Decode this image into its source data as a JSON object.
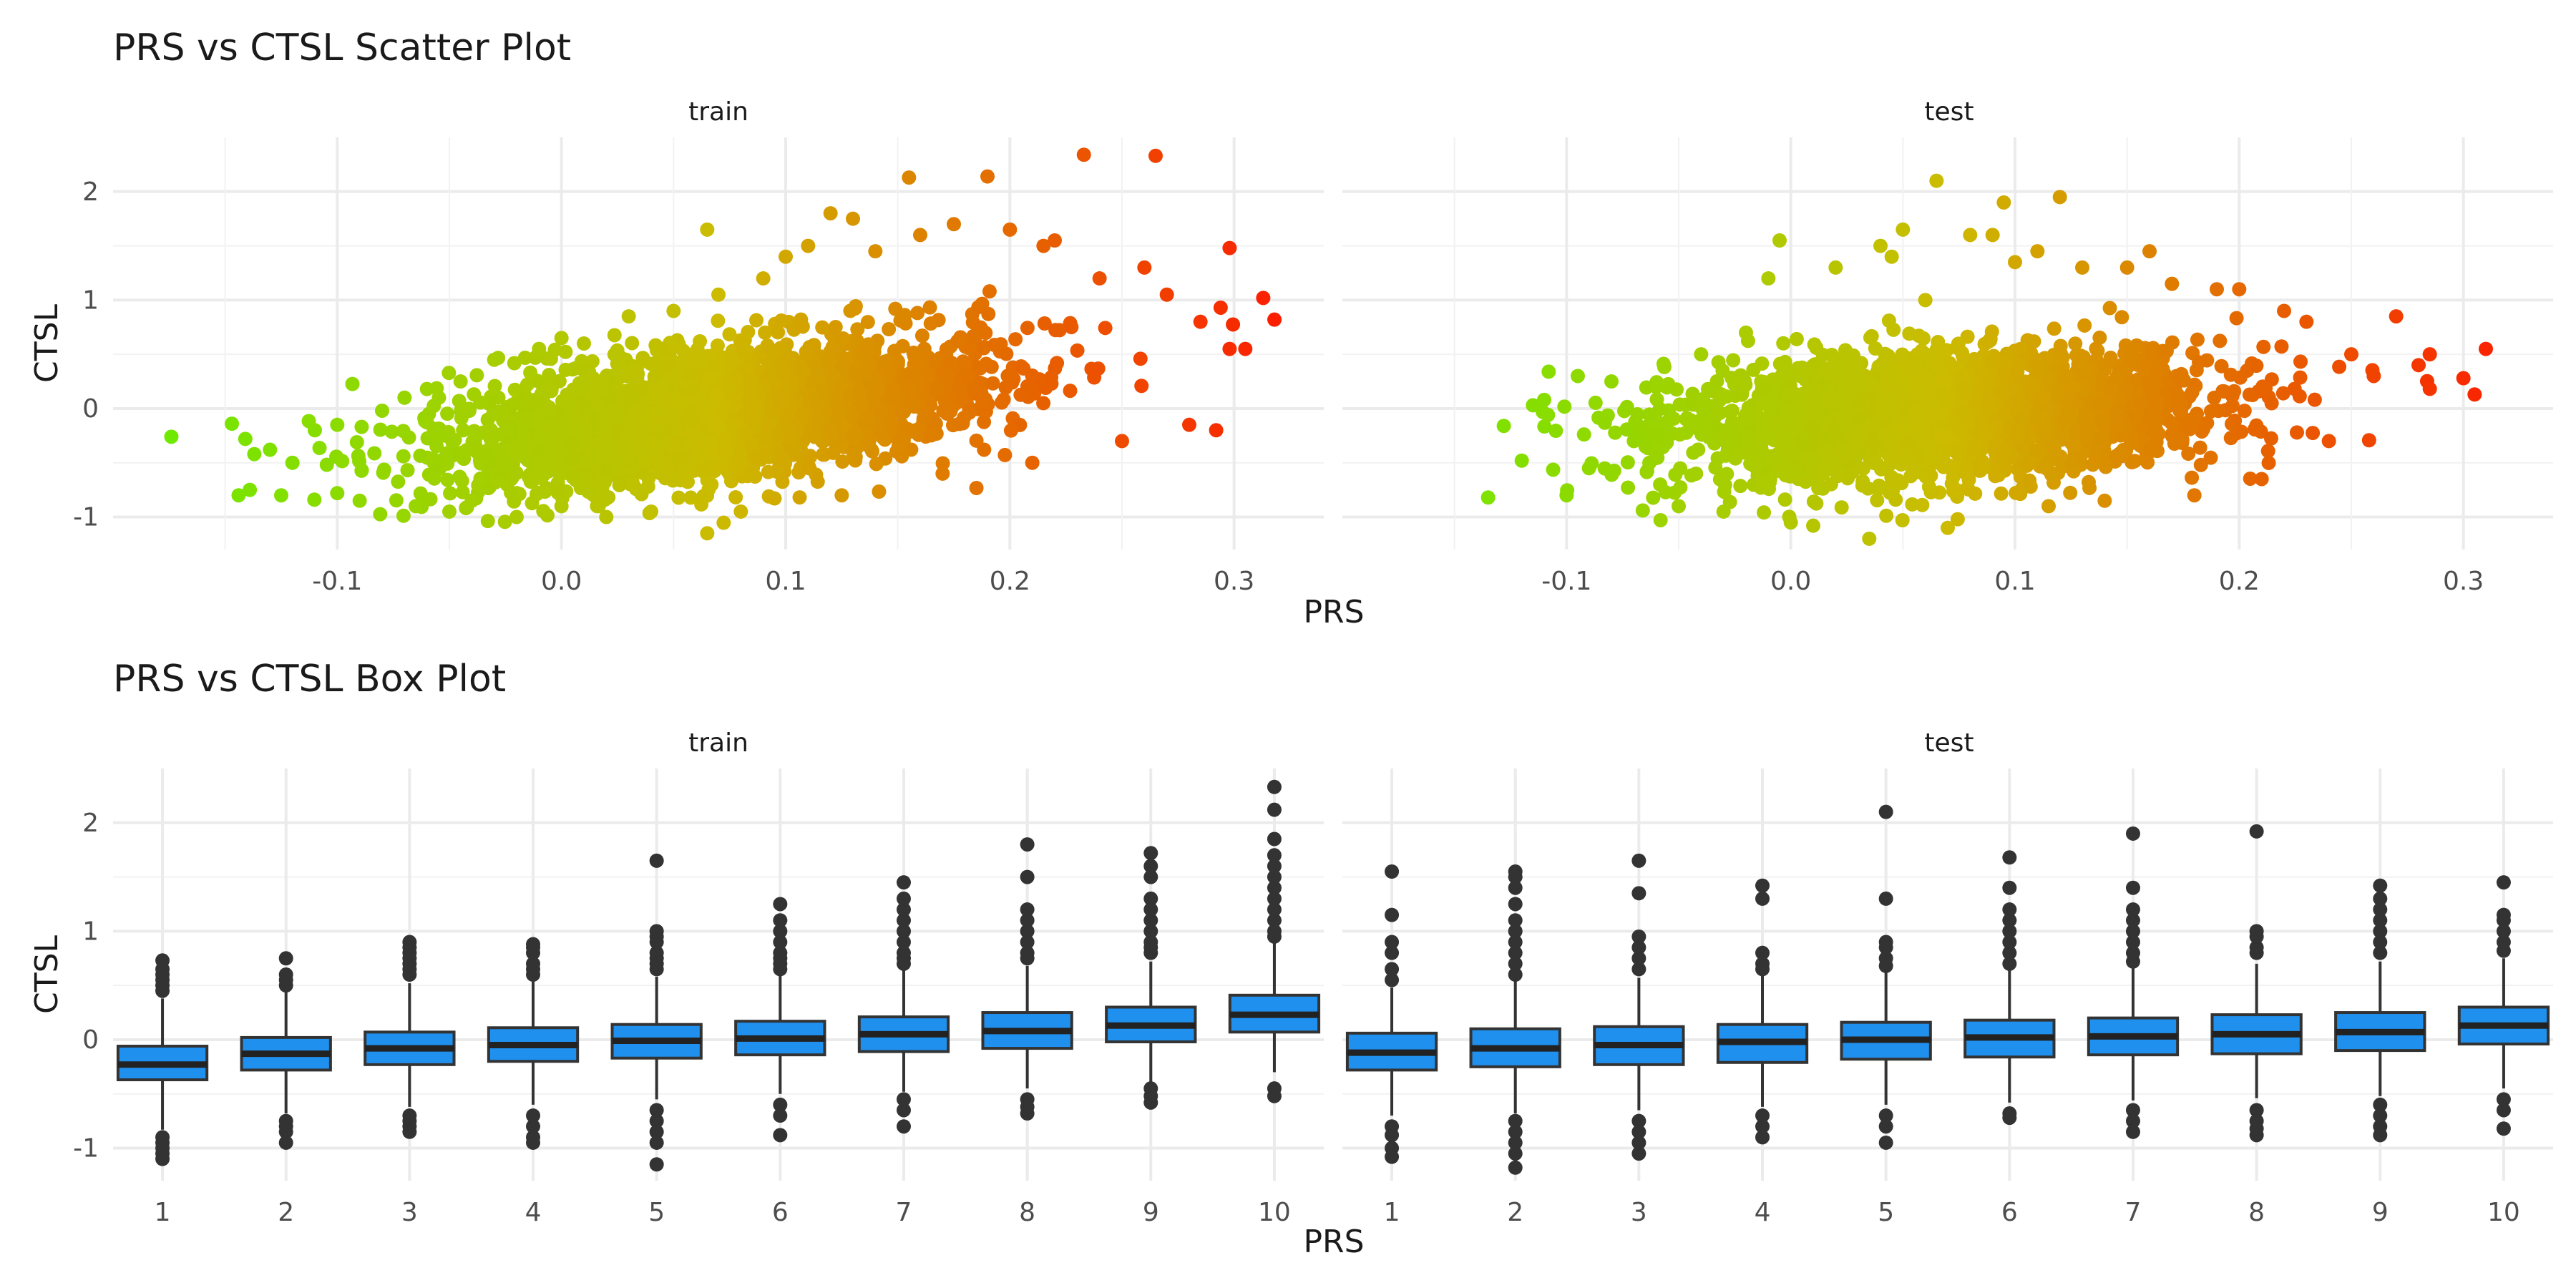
{
  "chart_data": [
    {
      "type": "scatter",
      "title": "PRS vs CTSL Scatter Plot",
      "xlabel": "PRS",
      "ylabel": "CTSL",
      "facets": [
        "train",
        "test"
      ],
      "xlim": [
        -0.2,
        0.34
      ],
      "ylim": [
        -1.3,
        2.5
      ],
      "xticks": [
        -0.1,
        0.0,
        0.1,
        0.2,
        0.3
      ],
      "xtick_labels": [
        "-0.1",
        "0.0",
        "0.1",
        "0.2",
        "0.3"
      ],
      "yticks": [
        -1,
        0,
        1,
        2
      ],
      "ytick_labels": [
        "-1",
        "0",
        "1",
        "2"
      ],
      "grid": true,
      "color_gradient": {
        "low": "#66ee00",
        "mid": "#ccbb00",
        "high": "#ff1100"
      },
      "series": [
        {
          "facet": "train",
          "points": [
            [
              -0.174,
              -0.26
            ],
            [
              -0.147,
              -0.14
            ],
            [
              -0.144,
              -0.8
            ],
            [
              -0.141,
              -0.28
            ],
            [
              -0.139,
              -0.75
            ],
            [
              -0.137,
              -0.42
            ],
            [
              -0.13,
              -0.38
            ],
            [
              -0.125,
              -0.8
            ],
            [
              -0.12,
              -0.5
            ],
            [
              -0.11,
              -0.2
            ],
            [
              -0.1,
              -0.15
            ],
            [
              -0.1,
              -0.78
            ],
            [
              -0.09,
              -0.85
            ],
            [
              -0.08,
              -0.02
            ],
            [
              -0.07,
              0.1
            ],
            [
              -0.065,
              -0.9
            ],
            [
              -0.06,
              0.18
            ],
            [
              -0.05,
              -0.95
            ],
            [
              -0.045,
              0.25
            ],
            [
              -0.04,
              -0.85
            ],
            [
              -0.03,
              0.45
            ],
            [
              -0.02,
              -1.0
            ],
            [
              -0.01,
              0.55
            ],
            [
              0.0,
              -0.9
            ],
            [
              0.0,
              0.65
            ],
            [
              0.01,
              0.6
            ],
            [
              0.02,
              -1.0
            ],
            [
              0.03,
              0.85
            ],
            [
              0.04,
              -0.95
            ],
            [
              0.05,
              0.9
            ],
            [
              0.065,
              1.65
            ],
            [
              0.065,
              -1.15
            ],
            [
              0.07,
              1.05
            ],
            [
              0.08,
              -0.95
            ],
            [
              0.09,
              1.2
            ],
            [
              0.1,
              1.4
            ],
            [
              0.11,
              1.5
            ],
            [
              0.12,
              1.8
            ],
            [
              0.125,
              -0.8
            ],
            [
              0.13,
              1.75
            ],
            [
              0.14,
              1.45
            ],
            [
              0.155,
              2.13
            ],
            [
              0.16,
              1.6
            ],
            [
              0.17,
              -0.6
            ],
            [
              0.175,
              1.7
            ],
            [
              0.19,
              2.14
            ],
            [
              0.2,
              1.65
            ],
            [
              0.21,
              -0.5
            ],
            [
              0.215,
              1.5
            ],
            [
              0.22,
              1.55
            ],
            [
              0.233,
              2.34
            ],
            [
              0.24,
              1.2
            ],
            [
              0.25,
              -0.3
            ],
            [
              0.26,
              1.3
            ],
            [
              0.265,
              2.33
            ],
            [
              0.27,
              1.05
            ],
            [
              0.28,
              -0.15
            ],
            [
              0.285,
              0.8
            ],
            [
              0.292,
              -0.2
            ],
            [
              0.294,
              0.93
            ],
            [
              0.298,
              0.55
            ],
            [
              0.298,
              1.48
            ],
            [
              0.305,
              0.55
            ],
            [
              0.313,
              1.02
            ],
            [
              0.318,
              0.82
            ]
          ]
        },
        {
          "facet": "test",
          "points": [
            [
              -0.135,
              -0.82
            ],
            [
              -0.128,
              -0.16
            ],
            [
              -0.12,
              -0.48
            ],
            [
              -0.115,
              0.03
            ],
            [
              -0.11,
              0.08
            ],
            [
              -0.108,
              0.34
            ],
            [
              -0.1,
              -0.8
            ],
            [
              -0.095,
              0.3
            ],
            [
              -0.09,
              -0.55
            ],
            [
              -0.08,
              0.25
            ],
            [
              -0.07,
              -0.3
            ],
            [
              -0.06,
              0.2
            ],
            [
              -0.05,
              -0.9
            ],
            [
              -0.04,
              0.5
            ],
            [
              -0.03,
              -0.95
            ],
            [
              -0.02,
              0.7
            ],
            [
              -0.01,
              1.2
            ],
            [
              -0.005,
              1.55
            ],
            [
              0.0,
              -1.05
            ],
            [
              0.01,
              -1.08
            ],
            [
              0.02,
              1.3
            ],
            [
              0.035,
              -1.2
            ],
            [
              0.04,
              1.5
            ],
            [
              0.045,
              1.4
            ],
            [
              0.05,
              1.65
            ],
            [
              0.06,
              1.0
            ],
            [
              0.065,
              2.1
            ],
            [
              0.07,
              -1.1
            ],
            [
              0.08,
              1.6
            ],
            [
              0.09,
              1.6
            ],
            [
              0.095,
              1.9
            ],
            [
              0.1,
              1.35
            ],
            [
              0.11,
              1.45
            ],
            [
              0.115,
              -0.9
            ],
            [
              0.12,
              1.95
            ],
            [
              0.13,
              1.3
            ],
            [
              0.14,
              -0.85
            ],
            [
              0.15,
              1.3
            ],
            [
              0.16,
              1.45
            ],
            [
              0.17,
              1.15
            ],
            [
              0.18,
              -0.8
            ],
            [
              0.19,
              1.1
            ],
            [
              0.2,
              1.1
            ],
            [
              0.21,
              -0.65
            ],
            [
              0.22,
              0.9
            ],
            [
              0.23,
              0.8
            ],
            [
              0.24,
              -0.3
            ],
            [
              0.25,
              0.5
            ],
            [
              0.26,
              0.3
            ],
            [
              0.27,
              0.85
            ],
            [
              0.28,
              0.4
            ],
            [
              0.285,
              0.5
            ],
            [
              0.3,
              0.28
            ],
            [
              0.305,
              0.13
            ],
            [
              0.31,
              0.55
            ]
          ]
        }
      ]
    },
    {
      "type": "box",
      "title": "PRS vs CTSL Box Plot",
      "xlabel": "PRS",
      "ylabel": "CTSL",
      "facets": [
        "train",
        "test"
      ],
      "categories": [
        "1",
        "2",
        "3",
        "4",
        "5",
        "6",
        "7",
        "8",
        "9",
        "10"
      ],
      "ylim": [
        -1.3,
        2.5
      ],
      "yticks": [
        -1,
        0,
        1,
        2
      ],
      "ytick_labels": [
        "-1",
        "0",
        "1",
        "2"
      ],
      "grid": true,
      "box_color": "#2090ee",
      "series": [
        {
          "facet": "train",
          "boxes": [
            {
              "low": -0.83,
              "q1": -0.37,
              "median": -0.23,
              "q3": -0.06,
              "high": 0.38,
              "outliers": [
                0.45,
                0.5,
                0.55,
                0.6,
                0.65,
                0.73,
                -0.9,
                -0.95,
                -1.0,
                -1.05,
                -1.1
              ]
            },
            {
              "low": -0.68,
              "q1": -0.28,
              "median": -0.13,
              "q3": 0.02,
              "high": 0.45,
              "outliers": [
                0.5,
                0.55,
                0.6,
                0.75,
                -0.75,
                -0.8,
                -0.85,
                -0.95
              ]
            },
            {
              "low": -0.62,
              "q1": -0.23,
              "median": -0.08,
              "q3": 0.07,
              "high": 0.52,
              "outliers": [
                0.6,
                0.65,
                0.7,
                0.75,
                0.8,
                0.85,
                0.9,
                -0.7,
                -0.75,
                -0.8,
                -0.85
              ]
            },
            {
              "low": -0.6,
              "q1": -0.2,
              "median": -0.05,
              "q3": 0.11,
              "high": 0.55,
              "outliers": [
                0.6,
                0.65,
                0.7,
                0.8,
                0.85,
                0.88,
                -0.7,
                -0.8,
                -0.9,
                -0.95
              ]
            },
            {
              "low": -0.55,
              "q1": -0.17,
              "median": -0.01,
              "q3": 0.14,
              "high": 0.58,
              "outliers": [
                0.65,
                0.7,
                0.75,
                0.8,
                0.9,
                0.95,
                1.0,
                1.65,
                -0.65,
                -0.75,
                -0.85,
                -0.95,
                -1.15
              ]
            },
            {
              "low": -0.5,
              "q1": -0.14,
              "median": 0.01,
              "q3": 0.17,
              "high": 0.6,
              "outliers": [
                0.65,
                0.7,
                0.75,
                0.8,
                0.9,
                1.0,
                1.1,
                1.25,
                -0.6,
                -0.7,
                -0.88
              ]
            },
            {
              "low": -0.48,
              "q1": -0.11,
              "median": 0.05,
              "q3": 0.21,
              "high": 0.64,
              "outliers": [
                0.7,
                0.75,
                0.8,
                0.9,
                1.0,
                1.1,
                1.2,
                1.3,
                1.45,
                -0.55,
                -0.65,
                -0.8
              ]
            },
            {
              "low": -0.45,
              "q1": -0.08,
              "median": 0.08,
              "q3": 0.25,
              "high": 0.68,
              "outliers": [
                0.75,
                0.8,
                0.9,
                1.0,
                1.1,
                1.2,
                1.5,
                1.8,
                -0.55,
                -0.62,
                -0.68
              ]
            },
            {
              "low": -0.4,
              "q1": -0.02,
              "median": 0.13,
              "q3": 0.3,
              "high": 0.72,
              "outliers": [
                0.8,
                0.85,
                0.9,
                1.0,
                1.1,
                1.2,
                1.3,
                1.5,
                1.6,
                1.72,
                -0.45,
                -0.52,
                -0.58
              ]
            },
            {
              "low": -0.3,
              "q1": 0.07,
              "median": 0.23,
              "q3": 0.41,
              "high": 0.9,
              "outliers": [
                0.95,
                1.0,
                1.1,
                1.2,
                1.3,
                1.4,
                1.5,
                1.6,
                1.7,
                1.85,
                2.12,
                2.33,
                -0.45,
                -0.52
              ]
            }
          ]
        },
        {
          "facet": "test",
          "boxes": [
            {
              "low": -0.7,
              "q1": -0.28,
              "median": -0.12,
              "q3": 0.06,
              "high": 0.48,
              "outliers": [
                0.55,
                0.65,
                0.8,
                0.9,
                1.15,
                1.55,
                -0.8,
                -0.88,
                -1.0,
                -1.08
              ]
            },
            {
              "low": -0.68,
              "q1": -0.25,
              "median": -0.08,
              "q3": 0.1,
              "high": 0.55,
              "outliers": [
                0.6,
                0.7,
                0.8,
                0.9,
                1.0,
                1.1,
                1.25,
                1.4,
                1.5,
                1.55,
                -0.75,
                -0.85,
                -0.95,
                -1.05,
                -1.18
              ]
            },
            {
              "low": -0.65,
              "q1": -0.23,
              "median": -0.05,
              "q3": 0.12,
              "high": 0.57,
              "outliers": [
                0.65,
                0.75,
                0.85,
                0.95,
                1.35,
                1.65,
                -0.75,
                -0.85,
                -0.95,
                -1.05
              ]
            },
            {
              "low": -0.62,
              "q1": -0.21,
              "median": -0.02,
              "q3": 0.14,
              "high": 0.6,
              "outliers": [
                0.65,
                0.7,
                0.8,
                1.3,
                1.42,
                -0.7,
                -0.8,
                -0.9
              ]
            },
            {
              "low": -0.6,
              "q1": -0.18,
              "median": 0.0,
              "q3": 0.16,
              "high": 0.62,
              "outliers": [
                0.68,
                0.75,
                0.85,
                0.9,
                1.3,
                2.1,
                -0.7,
                -0.8,
                -0.95
              ]
            },
            {
              "low": -0.58,
              "q1": -0.16,
              "median": 0.02,
              "q3": 0.18,
              "high": 0.64,
              "outliers": [
                0.7,
                0.8,
                0.9,
                1.0,
                1.1,
                1.2,
                1.4,
                1.68,
                -0.68,
                -0.72
              ]
            },
            {
              "low": -0.56,
              "q1": -0.14,
              "median": 0.03,
              "q3": 0.2,
              "high": 0.66,
              "outliers": [
                0.72,
                0.8,
                0.9,
                1.0,
                1.1,
                1.2,
                1.4,
                1.9,
                -0.65,
                -0.75,
                -0.85
              ]
            },
            {
              "low": -0.54,
              "q1": -0.13,
              "median": 0.05,
              "q3": 0.23,
              "high": 0.7,
              "outliers": [
                0.8,
                0.85,
                0.95,
                1.0,
                1.92,
                -0.65,
                -0.75,
                -0.82,
                -0.88
              ]
            },
            {
              "low": -0.52,
              "q1": -0.1,
              "median": 0.07,
              "q3": 0.25,
              "high": 0.72,
              "outliers": [
                0.8,
                0.9,
                1.0,
                1.1,
                1.2,
                1.3,
                1.42,
                -0.6,
                -0.7,
                -0.8,
                -0.88
              ]
            },
            {
              "low": -0.45,
              "q1": -0.04,
              "median": 0.13,
              "q3": 0.3,
              "high": 0.75,
              "outliers": [
                0.82,
                0.9,
                1.0,
                1.1,
                1.15,
                1.45,
                -0.55,
                -0.65,
                -0.82
              ]
            }
          ]
        }
      ]
    }
  ]
}
